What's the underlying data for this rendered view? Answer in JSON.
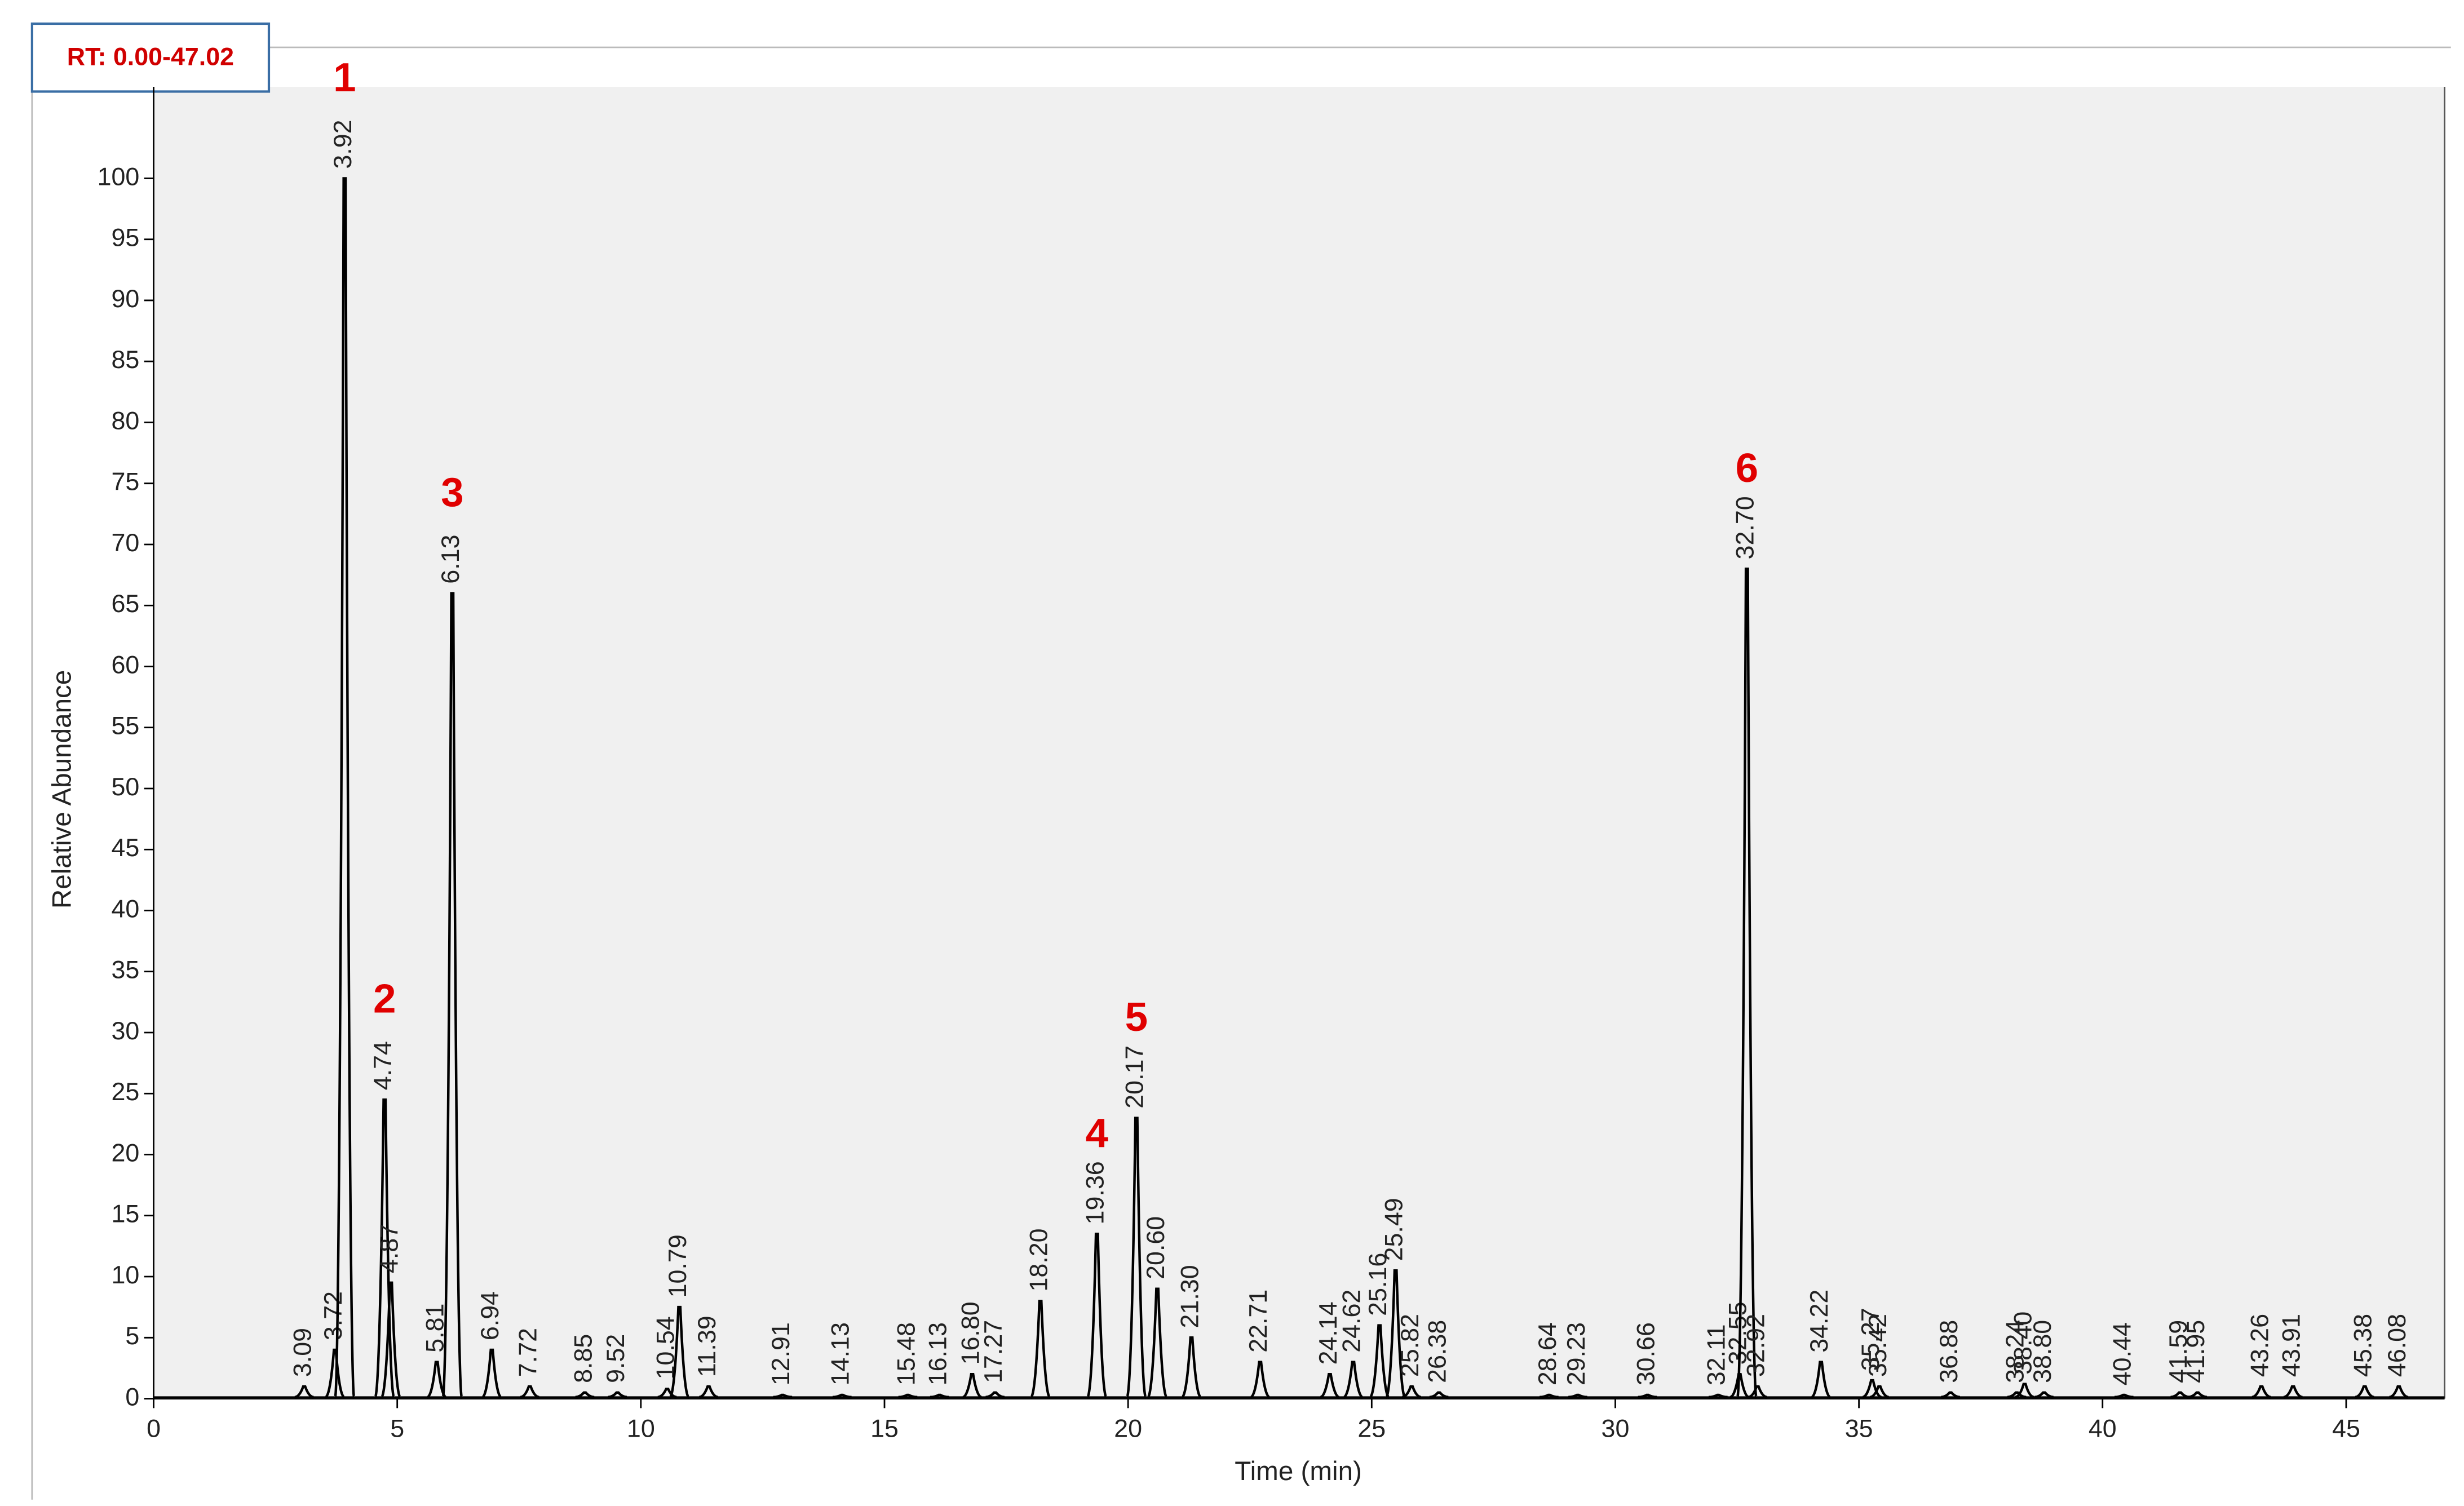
{
  "chart_data": {
    "type": "line",
    "note_box": "RT: 0.00-47.02",
    "xlabel": "Time (min)",
    "ylabel": "Relative Abundance",
    "xlim": [
      0,
      47.02
    ],
    "ylim": [
      0,
      107.5
    ],
    "xticks": [
      0,
      5,
      10,
      15,
      20,
      25,
      30,
      35,
      40,
      45
    ],
    "yticks": [
      0,
      5,
      10,
      15,
      20,
      25,
      30,
      35,
      40,
      45,
      50,
      55,
      60,
      65,
      70,
      75,
      80,
      85,
      90,
      95,
      100
    ],
    "series": [
      {
        "color": "#000000",
        "x": [
          3.09,
          3.72,
          3.92,
          4.74,
          4.87,
          5.81,
          6.13,
          6.94,
          7.72,
          8.85,
          9.52,
          10.54,
          10.79,
          11.39,
          12.91,
          14.13,
          15.48,
          16.13,
          16.8,
          17.27,
          18.2,
          19.36,
          20.17,
          20.6,
          21.3,
          22.71,
          24.14,
          24.62,
          25.16,
          25.49,
          25.82,
          26.38,
          28.64,
          29.23,
          30.66,
          32.11,
          32.55,
          32.7,
          32.92,
          34.22,
          35.27,
          35.42,
          36.88,
          38.24,
          38.4,
          38.8,
          40.44,
          41.59,
          41.95,
          43.26,
          43.91,
          45.38,
          46.08
        ],
        "x_labels": [
          "3.09",
          "3.72",
          "3.92",
          "4.74",
          "4.87",
          "5.81",
          "6.13",
          "6.94",
          "7.72",
          "8.85",
          "9.52",
          "10.54",
          "10.79",
          "11.39",
          "12.91",
          "14.13",
          "15.48",
          "16.13",
          "16.80",
          "17.27",
          "18.20",
          "19.36",
          "20.17",
          "20.60",
          "21.30",
          "22.71",
          "24.14",
          "24.62",
          "25.16",
          "25.49",
          "25.82",
          "26.38",
          "28.64",
          "29.23",
          "30.66",
          "32.11",
          "32.55",
          "32.70",
          "32.92",
          "34.22",
          "35.27",
          "35.42",
          "36.88",
          "38.24",
          "38.40",
          "38.80",
          "40.44",
          "41.59",
          "41.95",
          "43.26",
          "43.91",
          "45.38",
          "46.08"
        ],
        "values": [
          1,
          4,
          100,
          24.5,
          9.5,
          3,
          66,
          4,
          1,
          0.5,
          0.5,
          0.8,
          7.5,
          1,
          0.3,
          0.3,
          0.3,
          0.3,
          2,
          0.5,
          8,
          13.5,
          23,
          9,
          5,
          3,
          2,
          3,
          6,
          10.5,
          1,
          0.5,
          0.3,
          0.3,
          0.3,
          0.3,
          2,
          68,
          1,
          3,
          1.5,
          1,
          0.5,
          0.5,
          1.2,
          0.5,
          0.3,
          0.5,
          0.5,
          1,
          1,
          1,
          1
        ]
      }
    ],
    "annotations": [
      {
        "text": "1",
        "x": 3.92
      },
      {
        "text": "2",
        "x": 4.74
      },
      {
        "text": "3",
        "x": 6.13
      },
      {
        "text": "4",
        "x": 19.36
      },
      {
        "text": "5",
        "x": 20.17
      },
      {
        "text": "6",
        "x": 32.7
      }
    ]
  }
}
